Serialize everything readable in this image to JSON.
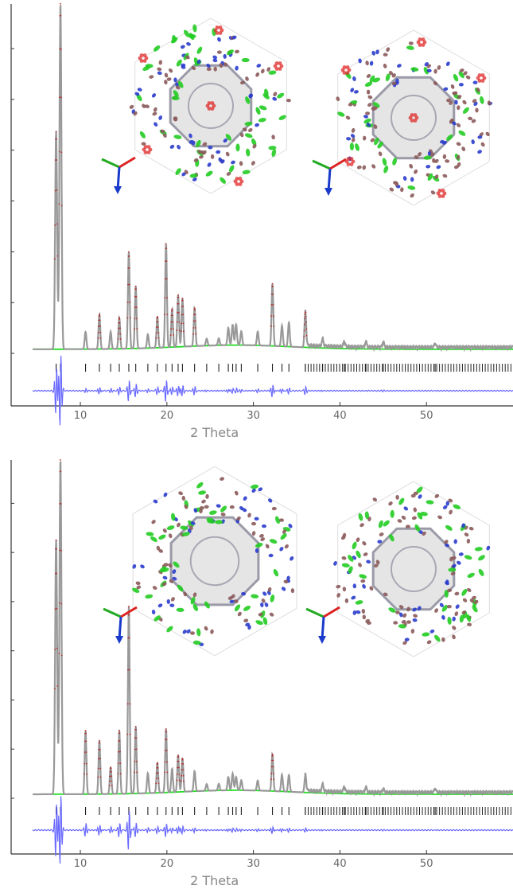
{
  "chart_data": [
    {
      "type": "line",
      "xlabel": "2 Theta",
      "xlim": [
        2,
        60
      ],
      "xticks": [
        10,
        20,
        30,
        40,
        50
      ],
      "ylabel": "",
      "series": [
        {
          "role": "observed",
          "color": "#b03030"
        },
        {
          "role": "calculated",
          "color": "#999999"
        },
        {
          "role": "background",
          "color": "#22dd22"
        },
        {
          "role": "difference",
          "color": "#6a6aff"
        }
      ],
      "peaks": [
        {
          "x": 7.2,
          "h": 0.63
        },
        {
          "x": 7.7,
          "h": 1.0
        },
        {
          "x": 10.6,
          "h": 0.05
        },
        {
          "x": 12.2,
          "h": 0.1
        },
        {
          "x": 13.5,
          "h": 0.05
        },
        {
          "x": 14.5,
          "h": 0.09
        },
        {
          "x": 15.6,
          "h": 0.28
        },
        {
          "x": 16.4,
          "h": 0.18
        },
        {
          "x": 17.8,
          "h": 0.04
        },
        {
          "x": 18.9,
          "h": 0.09
        },
        {
          "x": 19.9,
          "h": 0.3
        },
        {
          "x": 20.6,
          "h": 0.11
        },
        {
          "x": 21.3,
          "h": 0.15
        },
        {
          "x": 21.8,
          "h": 0.14
        },
        {
          "x": 23.2,
          "h": 0.11
        },
        {
          "x": 24.6,
          "h": 0.02
        },
        {
          "x": 26.0,
          "h": 0.02
        },
        {
          "x": 27.1,
          "h": 0.05
        },
        {
          "x": 27.6,
          "h": 0.06
        },
        {
          "x": 28.0,
          "h": 0.06
        },
        {
          "x": 28.6,
          "h": 0.04
        },
        {
          "x": 30.5,
          "h": 0.04
        },
        {
          "x": 32.2,
          "h": 0.18
        },
        {
          "x": 33.3,
          "h": 0.06
        },
        {
          "x": 34.1,
          "h": 0.07
        },
        {
          "x": 36.0,
          "h": 0.1
        },
        {
          "x": 38.0,
          "h": 0.02
        },
        {
          "x": 40.5,
          "h": 0.015
        },
        {
          "x": 43.0,
          "h": 0.015
        },
        {
          "x": 45.0,
          "h": 0.015
        },
        {
          "x": 51.0,
          "h": 0.01
        }
      ],
      "reflections_dense_from": 36
    },
    {
      "type": "line",
      "xlabel": "2 Theta",
      "xlim": [
        2,
        60
      ],
      "xticks": [
        10,
        20,
        30,
        40,
        50
      ],
      "ylabel": "",
      "series": [
        {
          "role": "observed",
          "color": "#b03030"
        },
        {
          "role": "calculated",
          "color": "#999999"
        },
        {
          "role": "background",
          "color": "#22dd22"
        },
        {
          "role": "difference",
          "color": "#6a6aff"
        }
      ],
      "peaks": [
        {
          "x": 7.2,
          "h": 0.76
        },
        {
          "x": 7.7,
          "h": 1.0
        },
        {
          "x": 10.6,
          "h": 0.19
        },
        {
          "x": 12.2,
          "h": 0.16
        },
        {
          "x": 13.5,
          "h": 0.08
        },
        {
          "x": 14.5,
          "h": 0.19
        },
        {
          "x": 15.6,
          "h": 0.56
        },
        {
          "x": 16.4,
          "h": 0.2
        },
        {
          "x": 17.8,
          "h": 0.06
        },
        {
          "x": 18.9,
          "h": 0.09
        },
        {
          "x": 19.9,
          "h": 0.19
        },
        {
          "x": 20.6,
          "h": 0.07
        },
        {
          "x": 21.3,
          "h": 0.11
        },
        {
          "x": 21.8,
          "h": 0.1
        },
        {
          "x": 23.2,
          "h": 0.06
        },
        {
          "x": 24.6,
          "h": 0.02
        },
        {
          "x": 26.0,
          "h": 0.02
        },
        {
          "x": 27.1,
          "h": 0.04
        },
        {
          "x": 27.6,
          "h": 0.05
        },
        {
          "x": 28.0,
          "h": 0.04
        },
        {
          "x": 28.6,
          "h": 0.03
        },
        {
          "x": 30.5,
          "h": 0.03
        },
        {
          "x": 32.2,
          "h": 0.11
        },
        {
          "x": 33.3,
          "h": 0.05
        },
        {
          "x": 34.1,
          "h": 0.05
        },
        {
          "x": 36.0,
          "h": 0.05
        },
        {
          "x": 38.0,
          "h": 0.02
        },
        {
          "x": 40.5,
          "h": 0.015
        },
        {
          "x": 43.0,
          "h": 0.015
        },
        {
          "x": 45.0,
          "h": 0.01
        },
        {
          "x": 51.0,
          "h": 0.01
        }
      ],
      "reflections_dense_from": 36
    }
  ],
  "insets": [
    {
      "name": "crystal-structure-view-a",
      "colors": {
        "cage": "#cfcfcf",
        "c": "#8b5a5a",
        "n": "#2a3ccc",
        "cl": "#22cc22",
        "o": "#e02a2a"
      }
    },
    {
      "name": "crystal-structure-view-b",
      "colors": {
        "cage": "#cfcfcf",
        "c": "#8b5a5a",
        "n": "#2a3ccc",
        "cl": "#22cc22",
        "o": "#e02a2a"
      }
    },
    {
      "name": "crystal-structure-view-c",
      "colors": {
        "cage": "#cfcfcf",
        "c": "#8b5a5a",
        "n": "#2a3ccc",
        "cl": "#22cc22"
      }
    },
    {
      "name": "crystal-structure-view-d",
      "colors": {
        "cage": "#cfcfcf",
        "c": "#8b5a5a",
        "n": "#2a3ccc",
        "cl": "#22cc22"
      }
    }
  ],
  "axes_triads": [
    {
      "name": "axis-triad-a"
    },
    {
      "name": "axis-triad-b"
    },
    {
      "name": "axis-triad-c"
    },
    {
      "name": "axis-triad-d"
    }
  ]
}
